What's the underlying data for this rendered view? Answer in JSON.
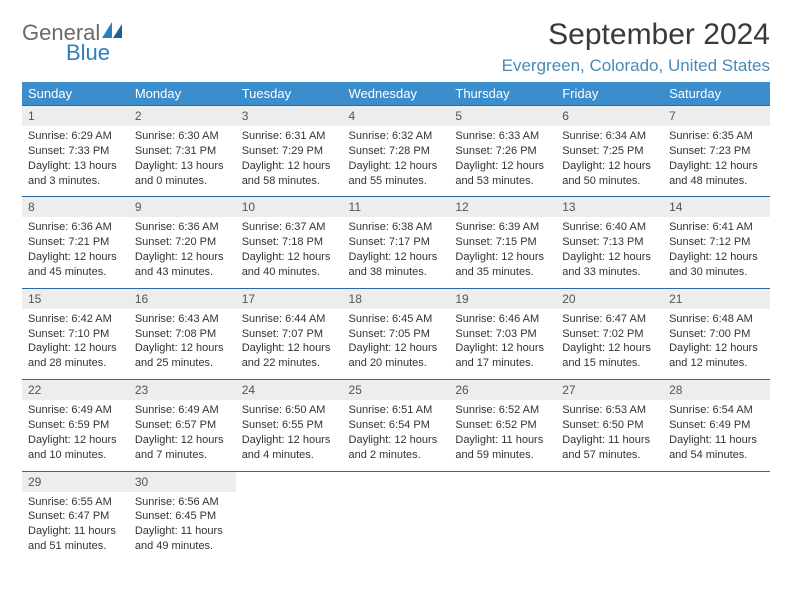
{
  "logo": {
    "top": "General",
    "bottom": "Blue"
  },
  "title": "September 2024",
  "location": "Evergreen, Colorado, United States",
  "colors": {
    "header_bg": "#3c8dcc",
    "header_text": "#ffffff",
    "daynum_bg": "#eceded",
    "row_border": "#2a6aa0",
    "logo_top": "#6a6a6a",
    "logo_bottom": "#2a7fbf",
    "location_text": "#4a8ab8"
  },
  "weekdays": [
    "Sunday",
    "Monday",
    "Tuesday",
    "Wednesday",
    "Thursday",
    "Friday",
    "Saturday"
  ],
  "weeks": [
    [
      {
        "day": "1",
        "sunrise": "Sunrise: 6:29 AM",
        "sunset": "Sunset: 7:33 PM",
        "daylight": "Daylight: 13 hours and 3 minutes."
      },
      {
        "day": "2",
        "sunrise": "Sunrise: 6:30 AM",
        "sunset": "Sunset: 7:31 PM",
        "daylight": "Daylight: 13 hours and 0 minutes."
      },
      {
        "day": "3",
        "sunrise": "Sunrise: 6:31 AM",
        "sunset": "Sunset: 7:29 PM",
        "daylight": "Daylight: 12 hours and 58 minutes."
      },
      {
        "day": "4",
        "sunrise": "Sunrise: 6:32 AM",
        "sunset": "Sunset: 7:28 PM",
        "daylight": "Daylight: 12 hours and 55 minutes."
      },
      {
        "day": "5",
        "sunrise": "Sunrise: 6:33 AM",
        "sunset": "Sunset: 7:26 PM",
        "daylight": "Daylight: 12 hours and 53 minutes."
      },
      {
        "day": "6",
        "sunrise": "Sunrise: 6:34 AM",
        "sunset": "Sunset: 7:25 PM",
        "daylight": "Daylight: 12 hours and 50 minutes."
      },
      {
        "day": "7",
        "sunrise": "Sunrise: 6:35 AM",
        "sunset": "Sunset: 7:23 PM",
        "daylight": "Daylight: 12 hours and 48 minutes."
      }
    ],
    [
      {
        "day": "8",
        "sunrise": "Sunrise: 6:36 AM",
        "sunset": "Sunset: 7:21 PM",
        "daylight": "Daylight: 12 hours and 45 minutes."
      },
      {
        "day": "9",
        "sunrise": "Sunrise: 6:36 AM",
        "sunset": "Sunset: 7:20 PM",
        "daylight": "Daylight: 12 hours and 43 minutes."
      },
      {
        "day": "10",
        "sunrise": "Sunrise: 6:37 AM",
        "sunset": "Sunset: 7:18 PM",
        "daylight": "Daylight: 12 hours and 40 minutes."
      },
      {
        "day": "11",
        "sunrise": "Sunrise: 6:38 AM",
        "sunset": "Sunset: 7:17 PM",
        "daylight": "Daylight: 12 hours and 38 minutes."
      },
      {
        "day": "12",
        "sunrise": "Sunrise: 6:39 AM",
        "sunset": "Sunset: 7:15 PM",
        "daylight": "Daylight: 12 hours and 35 minutes."
      },
      {
        "day": "13",
        "sunrise": "Sunrise: 6:40 AM",
        "sunset": "Sunset: 7:13 PM",
        "daylight": "Daylight: 12 hours and 33 minutes."
      },
      {
        "day": "14",
        "sunrise": "Sunrise: 6:41 AM",
        "sunset": "Sunset: 7:12 PM",
        "daylight": "Daylight: 12 hours and 30 minutes."
      }
    ],
    [
      {
        "day": "15",
        "sunrise": "Sunrise: 6:42 AM",
        "sunset": "Sunset: 7:10 PM",
        "daylight": "Daylight: 12 hours and 28 minutes."
      },
      {
        "day": "16",
        "sunrise": "Sunrise: 6:43 AM",
        "sunset": "Sunset: 7:08 PM",
        "daylight": "Daylight: 12 hours and 25 minutes."
      },
      {
        "day": "17",
        "sunrise": "Sunrise: 6:44 AM",
        "sunset": "Sunset: 7:07 PM",
        "daylight": "Daylight: 12 hours and 22 minutes."
      },
      {
        "day": "18",
        "sunrise": "Sunrise: 6:45 AM",
        "sunset": "Sunset: 7:05 PM",
        "daylight": "Daylight: 12 hours and 20 minutes."
      },
      {
        "day": "19",
        "sunrise": "Sunrise: 6:46 AM",
        "sunset": "Sunset: 7:03 PM",
        "daylight": "Daylight: 12 hours and 17 minutes."
      },
      {
        "day": "20",
        "sunrise": "Sunrise: 6:47 AM",
        "sunset": "Sunset: 7:02 PM",
        "daylight": "Daylight: 12 hours and 15 minutes."
      },
      {
        "day": "21",
        "sunrise": "Sunrise: 6:48 AM",
        "sunset": "Sunset: 7:00 PM",
        "daylight": "Daylight: 12 hours and 12 minutes."
      }
    ],
    [
      {
        "day": "22",
        "sunrise": "Sunrise: 6:49 AM",
        "sunset": "Sunset: 6:59 PM",
        "daylight": "Daylight: 12 hours and 10 minutes."
      },
      {
        "day": "23",
        "sunrise": "Sunrise: 6:49 AM",
        "sunset": "Sunset: 6:57 PM",
        "daylight": "Daylight: 12 hours and 7 minutes."
      },
      {
        "day": "24",
        "sunrise": "Sunrise: 6:50 AM",
        "sunset": "Sunset: 6:55 PM",
        "daylight": "Daylight: 12 hours and 4 minutes."
      },
      {
        "day": "25",
        "sunrise": "Sunrise: 6:51 AM",
        "sunset": "Sunset: 6:54 PM",
        "daylight": "Daylight: 12 hours and 2 minutes."
      },
      {
        "day": "26",
        "sunrise": "Sunrise: 6:52 AM",
        "sunset": "Sunset: 6:52 PM",
        "daylight": "Daylight: 11 hours and 59 minutes."
      },
      {
        "day": "27",
        "sunrise": "Sunrise: 6:53 AM",
        "sunset": "Sunset: 6:50 PM",
        "daylight": "Daylight: 11 hours and 57 minutes."
      },
      {
        "day": "28",
        "sunrise": "Sunrise: 6:54 AM",
        "sunset": "Sunset: 6:49 PM",
        "daylight": "Daylight: 11 hours and 54 minutes."
      }
    ],
    [
      {
        "day": "29",
        "sunrise": "Sunrise: 6:55 AM",
        "sunset": "Sunset: 6:47 PM",
        "daylight": "Daylight: 11 hours and 51 minutes."
      },
      {
        "day": "30",
        "sunrise": "Sunrise: 6:56 AM",
        "sunset": "Sunset: 6:45 PM",
        "daylight": "Daylight: 11 hours and 49 minutes."
      },
      null,
      null,
      null,
      null,
      null
    ]
  ]
}
